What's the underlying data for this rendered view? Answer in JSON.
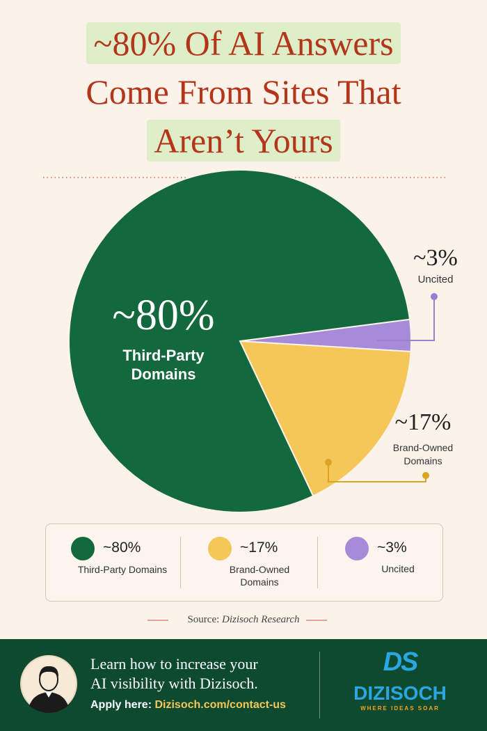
{
  "chart_data": {
    "type": "pie",
    "title": [
      "~80% Of AI Answers",
      "Come From Sites That",
      "Aren’t Yours"
    ],
    "categories": [
      "Third-Party Domains",
      "Brand-Owned Domains",
      "Uncited"
    ],
    "values": [
      80,
      17,
      3
    ],
    "value_labels": [
      "~80%",
      "~17%",
      "~3%"
    ],
    "colors": [
      "#13683d",
      "#f5c759",
      "#a68bd8"
    ],
    "source_label": "Source:",
    "source": "Dizisoch Research"
  },
  "footer": {
    "cta_lines": [
      "Learn how to increase your",
      "AI visibility with Dizisoch."
    ],
    "apply_label": "Apply here:",
    "apply_url": "Dizisoch.com/contact-us",
    "logo_mark": "DS",
    "brand": "DIZISOCH",
    "tagline": "WHERE IDEAS SOAR"
  }
}
